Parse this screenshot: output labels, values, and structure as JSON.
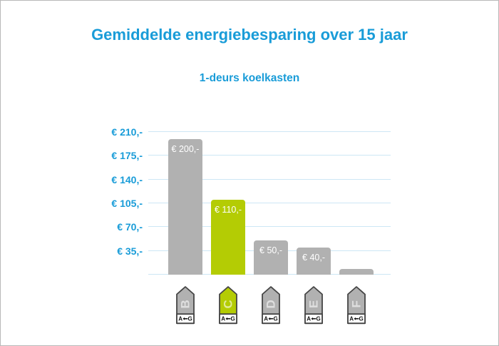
{
  "title": "Gemiddelde energiebesparing over 15 jaar",
  "subtitle": "1-deurs koelkasten",
  "colors": {
    "title_blue": "#199cd8",
    "bar_gray": "#b1b1b1",
    "bar_green": "#b4cc04",
    "gridline_blue": "#cde7f5",
    "bar_label_white": "#ffffff",
    "tag_border": "#454545",
    "tag_letter_white": "#ffffff",
    "tag_scale_black": "#111111",
    "page_border": "#b9b9b9"
  },
  "chart_data": {
    "type": "bar",
    "title": "Gemiddelde energiebesparing over 15 jaar",
    "subtitle": "1-deurs koelkasten",
    "categories": [
      "B",
      "C",
      "D",
      "E",
      "F"
    ],
    "values": [
      200,
      110,
      50,
      40,
      8
    ],
    "bar_labels": [
      "€ 200,-",
      "€ 110,-",
      "€ 50,-",
      "€ 40,-",
      ""
    ],
    "highlight_index": 1,
    "y_ticks": [
      "€ 210,-",
      "€ 175,-",
      "€ 140,-",
      "€ 105,-",
      "€ 70,-",
      "€ 35,-"
    ],
    "y_tick_values": [
      210,
      175,
      140,
      105,
      70,
      35
    ],
    "ylim": [
      0,
      210
    ],
    "xlabel": "",
    "ylabel": "",
    "grid": true,
    "legend": false,
    "tag_scale_text": "A←G"
  }
}
